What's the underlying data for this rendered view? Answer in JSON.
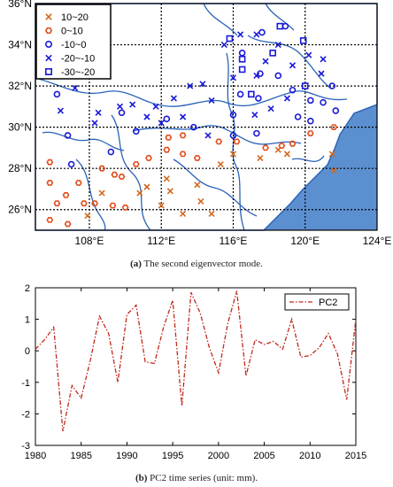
{
  "chart_data": [
    {
      "type": "scatter",
      "title": "",
      "x_ticks": [
        "108°E",
        "112°E",
        "116°E",
        "120°E",
        "124°E"
      ],
      "y_ticks": [
        "26°N",
        "28°N",
        "30°N",
        "32°N",
        "34°N",
        "36°N"
      ],
      "xlim": [
        105,
        124
      ],
      "ylim": [
        25,
        36
      ],
      "grid": "dotted",
      "legend_position": "top-left",
      "legend": [
        {
          "label": "10~20",
          "marker": "x",
          "color": "#d2691e"
        },
        {
          "label": "0~10",
          "marker": "hexagon",
          "color": "#e05020"
        },
        {
          "label": "-10~0",
          "marker": "circle",
          "color": "#1a1ad8"
        },
        {
          "label": "-20~-10",
          "marker": "x",
          "color": "#1a1ad8"
        },
        {
          "label": "-30~-20",
          "marker": "square",
          "color": "#1a1ad8"
        }
      ],
      "series": [
        {
          "name": "10~20",
          "points": [
            [
              107.9,
              25.7
            ],
            [
              108.7,
              26.8
            ],
            [
              110.8,
              26.8
            ],
            [
              111.2,
              27.1
            ],
            [
              112.3,
              27.5
            ],
            [
              112.5,
              26.9
            ],
            [
              113.2,
              25.8
            ],
            [
              114.2,
              26.4
            ],
            [
              114.8,
              25.8
            ],
            [
              114.0,
              27.2
            ],
            [
              115.3,
              28.2
            ],
            [
              116.0,
              28.7
            ],
            [
              117.5,
              28.5
            ],
            [
              119.0,
              28.7
            ],
            [
              121.5,
              28.7
            ],
            [
              121.6,
              27.9
            ],
            [
              118.5,
              28.9
            ],
            [
              112.0,
              26.2
            ]
          ]
        },
        {
          "name": "0~10",
          "points": [
            [
              105.8,
              28.3
            ],
            [
              105.8,
              27.3
            ],
            [
              105.8,
              25.5
            ],
            [
              106.2,
              26.3
            ],
            [
              106.7,
              26.7
            ],
            [
              106.8,
              25.3
            ],
            [
              107.4,
              27.3
            ],
            [
              107.7,
              26.3
            ],
            [
              108.3,
              26.3
            ],
            [
              108.7,
              28.0
            ],
            [
              109.4,
              27.7
            ],
            [
              109.3,
              26.2
            ],
            [
              110.0,
              26.1
            ],
            [
              109.8,
              27.6
            ],
            [
              110.6,
              28.2
            ],
            [
              111.3,
              28.5
            ],
            [
              112.4,
              29.5
            ],
            [
              112.3,
              28.9
            ],
            [
              113.2,
              29.6
            ],
            [
              113.2,
              28.7
            ],
            [
              114.0,
              28.5
            ],
            [
              115.2,
              29.3
            ],
            [
              116.2,
              29.3
            ],
            [
              117.8,
              29.0
            ],
            [
              118.7,
              29.1
            ],
            [
              119.3,
              29.2
            ],
            [
              120.3,
              29.7
            ],
            [
              121.6,
              30.0
            ]
          ]
        },
        {
          "name": "-10~0",
          "points": [
            [
              106.2,
              31.6
            ],
            [
              106.8,
              29.6
            ],
            [
              107.0,
              28.2
            ],
            [
              109.2,
              28.8
            ],
            [
              109.8,
              30.7
            ],
            [
              110.6,
              29.8
            ],
            [
              112.3,
              30.4
            ],
            [
              113.8,
              30.0
            ],
            [
              116.0,
              29.6
            ],
            [
              116.0,
              30.6
            ],
            [
              117.3,
              29.7
            ],
            [
              116.4,
              31.6
            ],
            [
              117.5,
              32.6
            ],
            [
              118.5,
              32.5
            ],
            [
              119.6,
              30.5
            ],
            [
              119.3,
              31.8
            ],
            [
              120.3,
              31.3
            ],
            [
              120.3,
              30.3
            ],
            [
              121.0,
              31.2
            ],
            [
              116.5,
              33.6
            ],
            [
              117.6,
              34.6
            ],
            [
              121.5,
              32.0
            ],
            [
              121.7,
              30.8
            ],
            [
              117.4,
              31.4
            ],
            [
              118.9,
              34.9
            ]
          ]
        },
        {
          "name": "-20~-10",
          "points": [
            [
              107.2,
              31.9
            ],
            [
              106.4,
              30.8
            ],
            [
              108.5,
              30.7
            ],
            [
              109.7,
              31.0
            ],
            [
              110.4,
              31.1
            ],
            [
              111.2,
              30.5
            ],
            [
              111.7,
              31.0
            ],
            [
              112.7,
              31.4
            ],
            [
              113.6,
              32.0
            ],
            [
              114.3,
              32.1
            ],
            [
              114.8,
              31.3
            ],
            [
              116.0,
              32.4
            ],
            [
              116.4,
              34.5
            ],
            [
              117.3,
              34.5
            ],
            [
              117.3,
              32.5
            ],
            [
              117.8,
              33.2
            ],
            [
              118.5,
              34.0
            ],
            [
              119.3,
              33.0
            ],
            [
              120.2,
              33.5
            ],
            [
              121.0,
              33.3
            ],
            [
              119.0,
              31.4
            ],
            [
              120.9,
              32.6
            ],
            [
              112.0,
              30.2
            ],
            [
              113.2,
              30.5
            ],
            [
              114.6,
              29.6
            ],
            [
              117.2,
              30.6
            ],
            [
              118.1,
              30.9
            ],
            [
              115.5,
              34.0
            ],
            [
              108.3,
              30.2
            ]
          ]
        },
        {
          "name": "-30~-20",
          "points": [
            [
              115.8,
              34.3
            ],
            [
              116.5,
              33.3
            ],
            [
              116.5,
              32.8
            ],
            [
              117.0,
              31.6
            ],
            [
              118.2,
              33.6
            ],
            [
              118.6,
              34.9
            ],
            [
              120.0,
              32.0
            ],
            [
              119.9,
              34.2
            ]
          ]
        }
      ],
      "caption_label": "(a)",
      "caption_text": " The second eigenvector mode."
    },
    {
      "type": "line",
      "title": "",
      "xlabel": "",
      "ylabel": "",
      "xlim": [
        1980,
        2015
      ],
      "ylim": [
        -3,
        2
      ],
      "x_ticks": [
        1980,
        1985,
        1990,
        1995,
        2000,
        2005,
        2010,
        2015
      ],
      "y_ticks": [
        -3,
        -2,
        -1,
        0,
        1,
        2
      ],
      "legend_position": "top-right",
      "series": [
        {
          "name": "PC2",
          "color": "#c0281a",
          "x": [
            1980,
            1981,
            1982,
            1983,
            1984,
            1985,
            1986,
            1987,
            1988,
            1989,
            1990,
            1991,
            1992,
            1993,
            1994,
            1995,
            1996,
            1997,
            1998,
            1999,
            2000,
            2001,
            2002,
            2003,
            2004,
            2005,
            2006,
            2007,
            2008,
            2009,
            2010,
            2011,
            2012,
            2013,
            2014,
            2015
          ],
          "y": [
            0.05,
            0.35,
            0.75,
            -2.55,
            -1.1,
            -1.5,
            -0.3,
            1.1,
            0.55,
            -1.0,
            1.15,
            1.45,
            -0.35,
            -0.4,
            0.75,
            1.6,
            -1.75,
            1.85,
            1.2,
            0.1,
            -0.7,
            0.85,
            1.9,
            -0.8,
            0.35,
            0.2,
            0.3,
            0.05,
            1.0,
            -0.2,
            -0.15,
            0.1,
            0.55,
            -0.1,
            -1.55,
            1.0
          ]
        }
      ],
      "caption_label": "(b)",
      "caption_text": " PC2 time series (unit: mm)."
    }
  ]
}
